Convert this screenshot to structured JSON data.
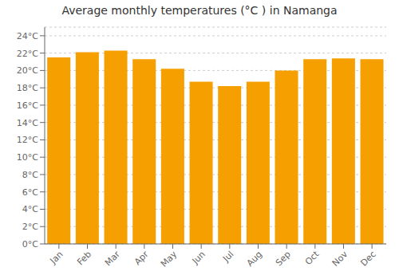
{
  "chart_data": {
    "type": "bar",
    "title": "Average monthly temperatures (°C ) in Namanga",
    "categories": [
      "Jan",
      "Feb",
      "Mar",
      "Apr",
      "May",
      "Jun",
      "Jul",
      "Aug",
      "Sep",
      "Oct",
      "Nov",
      "Dec"
    ],
    "values": [
      21.5,
      22.1,
      22.3,
      21.3,
      20.2,
      18.7,
      18.2,
      18.7,
      20.0,
      21.3,
      21.4,
      21.3
    ],
    "color": "#F5A000",
    "ylim": [
      0,
      25
    ],
    "yticks": [
      {
        "value": 0,
        "label": "0°C"
      },
      {
        "value": 2,
        "label": "2°C"
      },
      {
        "value": 4,
        "label": "4°C"
      },
      {
        "value": 6,
        "label": "6°C"
      },
      {
        "value": 8,
        "label": "8°C"
      },
      {
        "value": 10,
        "label": "10°C"
      },
      {
        "value": 12,
        "label": "12°C"
      },
      {
        "value": 14,
        "label": "14°C"
      },
      {
        "value": 16,
        "label": "16°C"
      },
      {
        "value": 18,
        "label": "18°C"
      },
      {
        "value": 20,
        "label": "20°C"
      },
      {
        "value": 22,
        "label": "22°C"
      },
      {
        "value": 24,
        "label": "24°C"
      }
    ],
    "grid": true
  }
}
